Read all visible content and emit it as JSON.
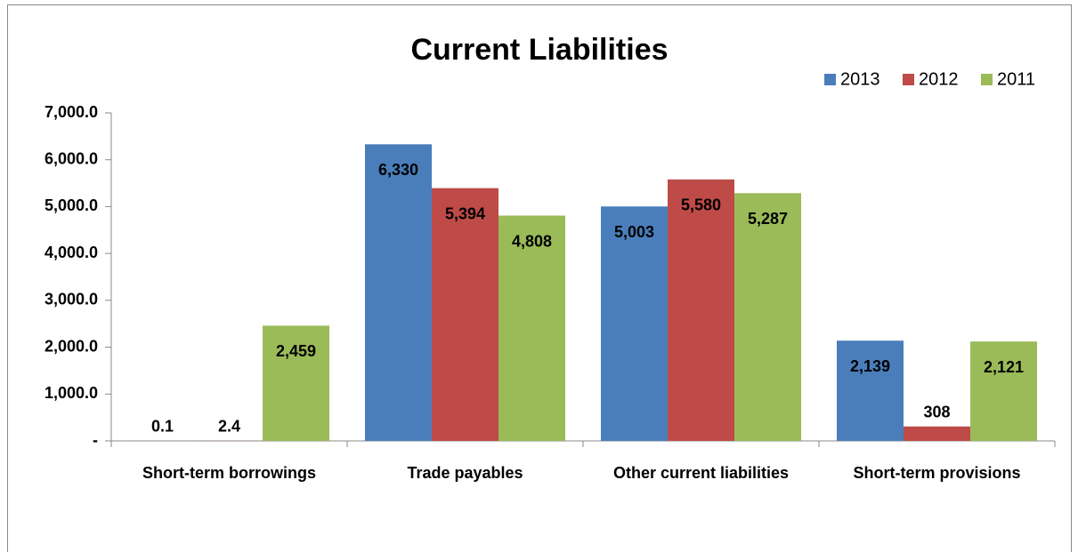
{
  "chart_data": {
    "type": "bar",
    "title": "Current Liabilities",
    "categories": [
      "Short-term borrowings",
      "Trade payables",
      "Other current liabilities",
      "Short-term provisions"
    ],
    "series": [
      {
        "name": "2013",
        "color": "#4a7ebb",
        "values": [
          0.1,
          6330,
          5003,
          2139
        ],
        "value_labels": [
          "0.1",
          "6,330",
          "5,003",
          "2,139"
        ]
      },
      {
        "name": "2012",
        "color": "#be4b48",
        "values": [
          2.4,
          5394,
          5580,
          308
        ],
        "value_labels": [
          "2.4",
          "5,394",
          "5,580",
          "308"
        ]
      },
      {
        "name": "2011",
        "color": "#9bbb59",
        "values": [
          2459,
          4808,
          5287,
          2121
        ],
        "value_labels": [
          "2,459",
          "4,808",
          "5,287",
          "2,121"
        ]
      }
    ],
    "ylim": [
      0,
      7000
    ],
    "yticks": [
      {
        "value": 0,
        "label": "-"
      },
      {
        "value": 1000,
        "label": "1,000.0"
      },
      {
        "value": 2000,
        "label": "2,000.0"
      },
      {
        "value": 3000,
        "label": "3,000.0"
      },
      {
        "value": 4000,
        "label": "4,000.0"
      },
      {
        "value": 5000,
        "label": "5,000.0"
      },
      {
        "value": 6000,
        "label": "6,000.0"
      },
      {
        "value": 7000,
        "label": "7,000.0"
      }
    ],
    "grid": false,
    "legend": "top-right"
  }
}
